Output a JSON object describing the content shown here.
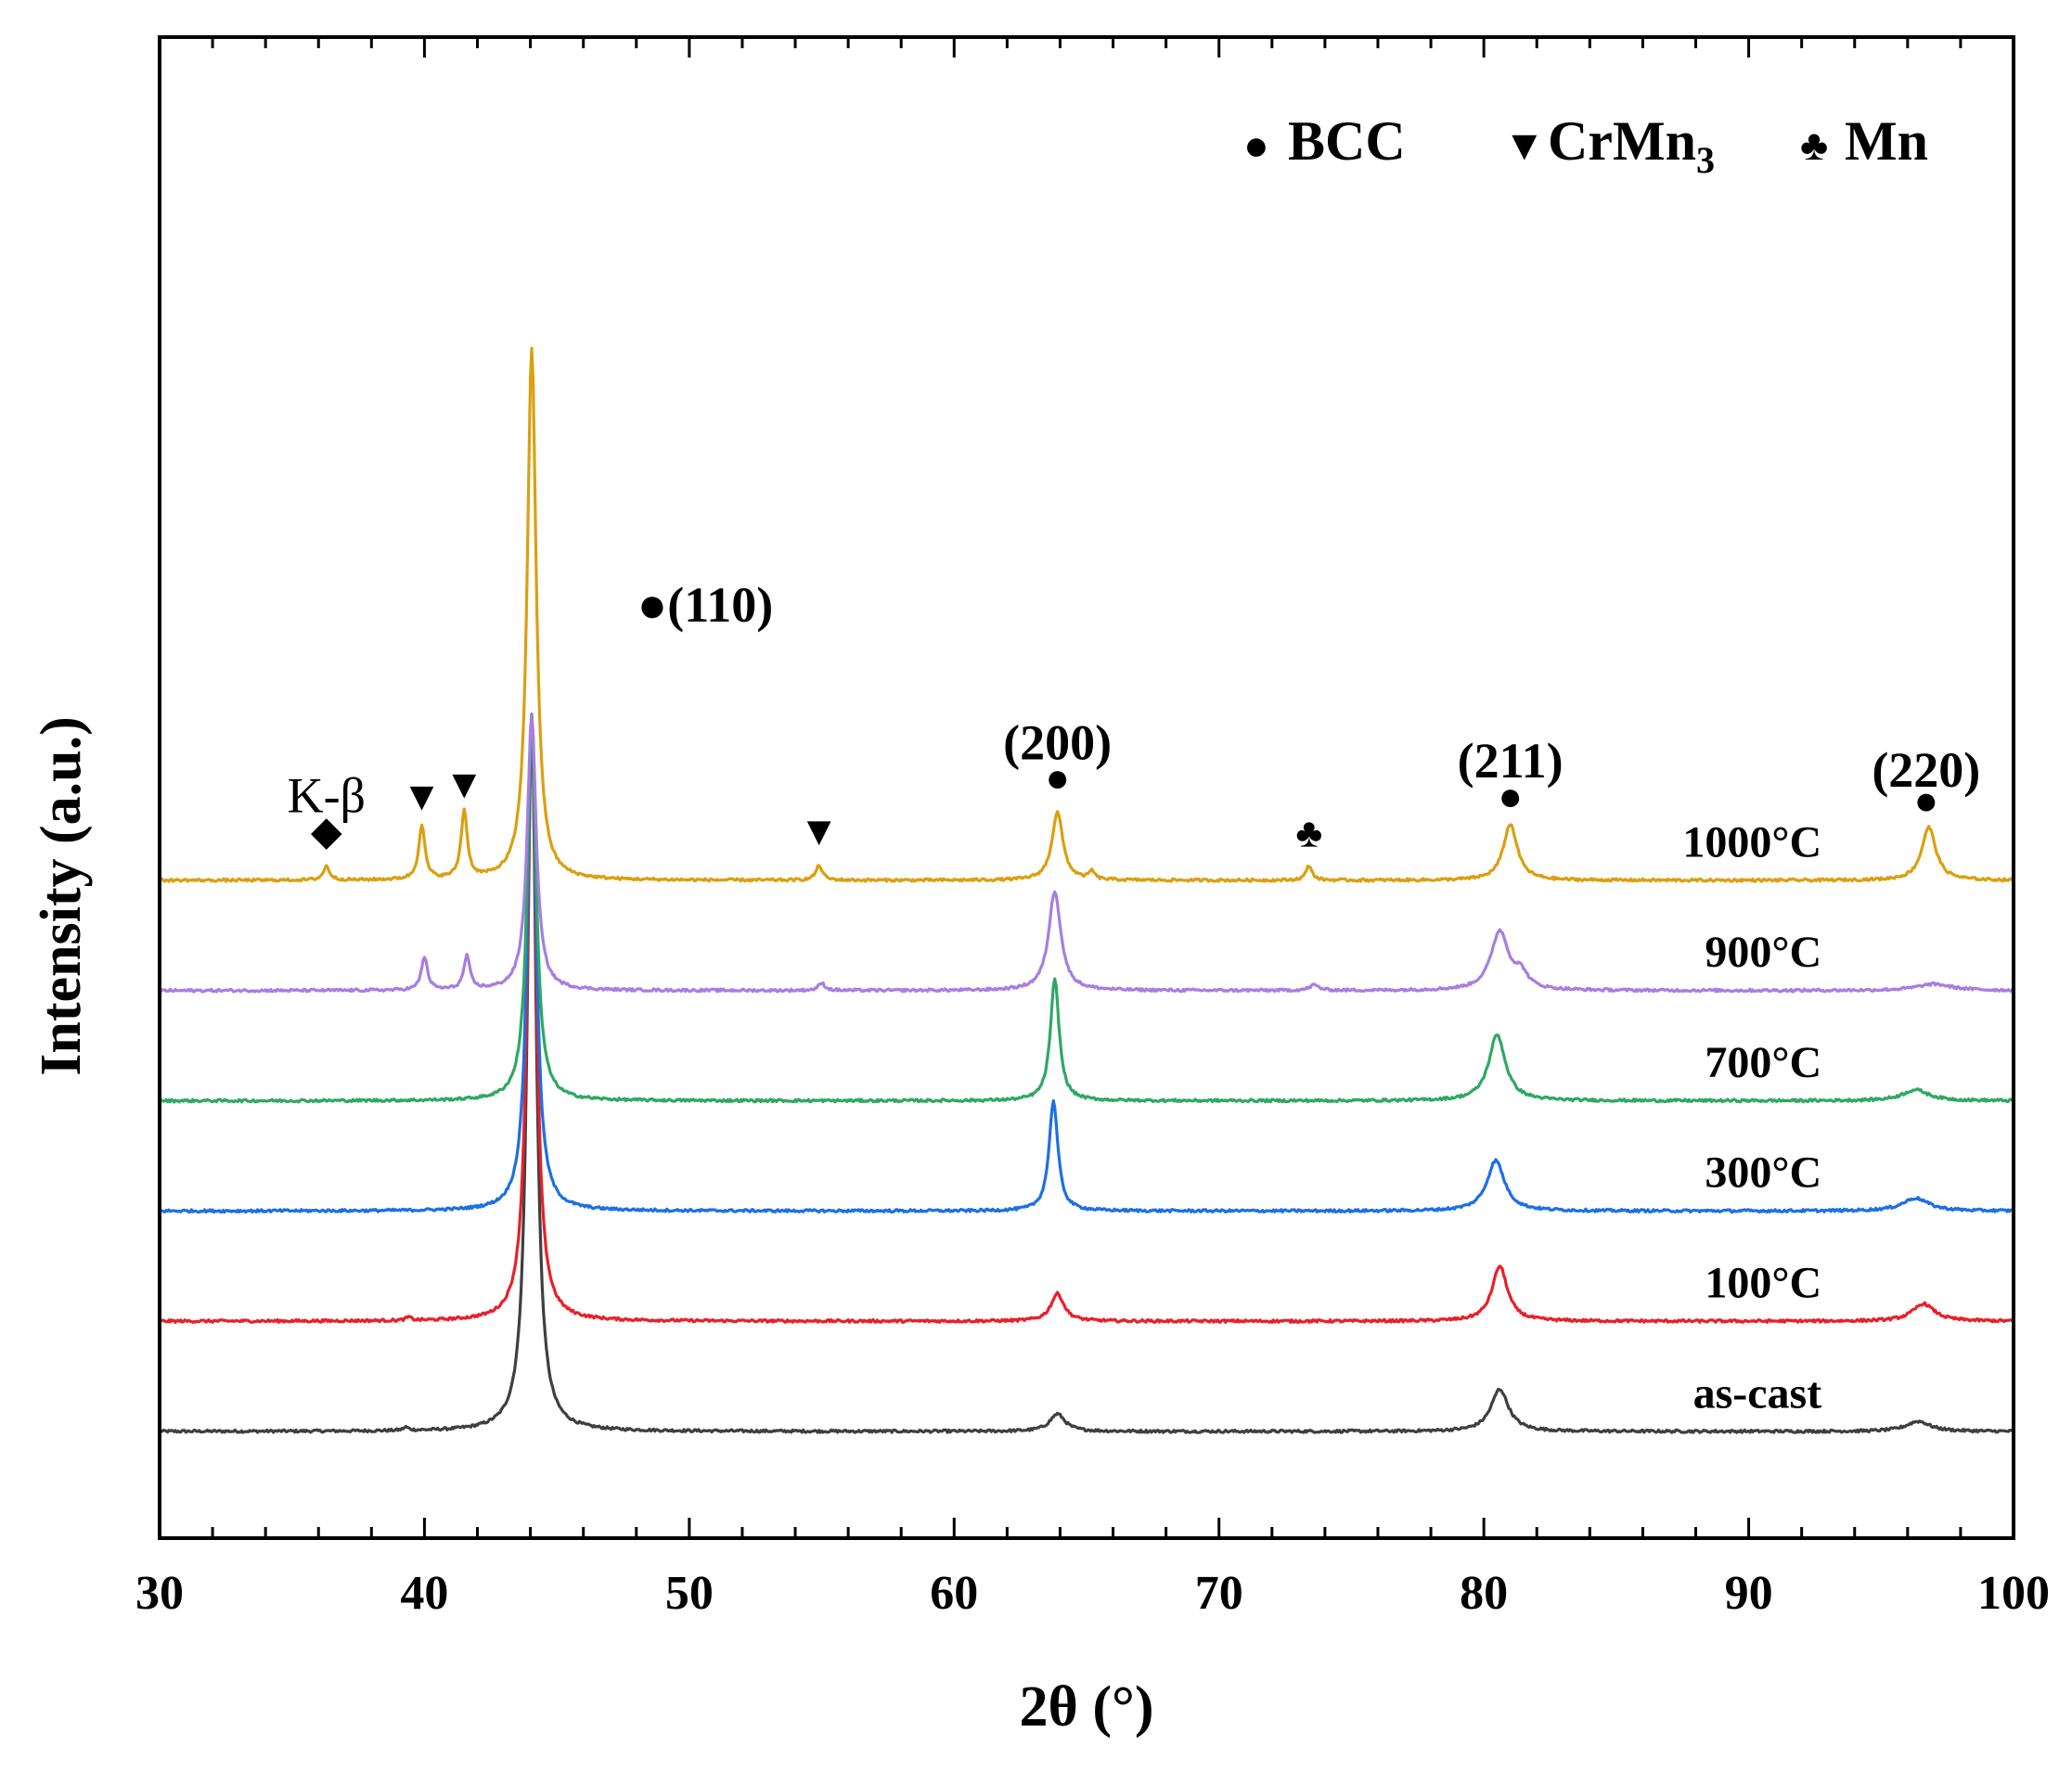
{
  "chart_data": {
    "type": "line",
    "title": "",
    "xlabel": "2θ (°)",
    "ylabel": "Intensity (a.u.)",
    "xlim": [
      30,
      100
    ],
    "xticks": [
      "30",
      "40",
      "50",
      "60",
      "70",
      "80",
      "90",
      "100"
    ],
    "x_minor_step": 2,
    "yticks": [],
    "series": [
      {
        "name": "as-cast",
        "label": "as-cast",
        "color": "#3f3f3f",
        "baseline": 0,
        "peaks": [
          [
            39.3,
            0.35,
            0.12
          ],
          [
            44.05,
            78,
            0.2
          ],
          [
            63.9,
            1.9,
            0.35
          ],
          [
            80.6,
            4.6,
            0.4
          ],
          [
            96.4,
            1.1,
            0.55
          ]
        ]
      },
      {
        "name": "100°C",
        "label": "100°C",
        "color": "#e8202a",
        "baseline": 12,
        "peaks": [
          [
            39.4,
            0.35,
            0.12
          ],
          [
            44.05,
            66,
            0.2
          ],
          [
            63.9,
            3.0,
            0.3
          ],
          [
            80.6,
            6.0,
            0.35
          ],
          [
            96.6,
            1.9,
            0.5
          ]
        ]
      },
      {
        "name": "300°C",
        "label": "300°C",
        "color": "#1e6fe3",
        "baseline": 24,
        "peaks": [
          [
            44.05,
            54,
            0.2
          ],
          [
            63.75,
            12.0,
            0.2
          ],
          [
            80.45,
            5.5,
            0.4
          ],
          [
            96.3,
            1.4,
            0.6
          ]
        ]
      },
      {
        "name": "700°C",
        "label": "700°C",
        "color": "#2fa862",
        "baseline": 36,
        "peaks": [
          [
            44.05,
            42,
            0.2
          ],
          [
            63.8,
            13.2,
            0.2
          ],
          [
            80.5,
            7.2,
            0.38
          ],
          [
            96.3,
            1.2,
            0.6
          ]
        ]
      },
      {
        "name": "900°C",
        "label": "900°C",
        "color": "#a77ee0",
        "baseline": 48,
        "peaks": [
          [
            40.0,
            3.6,
            0.14
          ],
          [
            41.6,
            3.6,
            0.14
          ],
          [
            44.05,
            30,
            0.2
          ],
          [
            55.0,
            0.8,
            0.15
          ],
          [
            63.8,
            10.8,
            0.28
          ],
          [
            73.6,
            0.6,
            0.2
          ],
          [
            80.6,
            6.4,
            0.4
          ],
          [
            81.4,
            1.6,
            0.3
          ],
          [
            97.0,
            0.7,
            0.8
          ]
        ]
      },
      {
        "name": "1000°C",
        "label": "1000°C",
        "color": "#d9a011",
        "baseline": 60,
        "peaks": [
          [
            36.3,
            1.5,
            0.14
          ],
          [
            39.9,
            5.9,
            0.14
          ],
          [
            41.5,
            7.4,
            0.14
          ],
          [
            44.05,
            58,
            0.2
          ],
          [
            54.9,
            1.6,
            0.15
          ],
          [
            63.9,
            7.4,
            0.25
          ],
          [
            65.2,
            0.9,
            0.12
          ],
          [
            73.4,
            1.6,
            0.14
          ],
          [
            81.0,
            6.1,
            0.32
          ],
          [
            96.8,
            5.8,
            0.32
          ]
        ]
      }
    ],
    "series_label_x": 86.8,
    "y_scale": 10,
    "legend": {
      "placement": "top-right",
      "entries": [
        {
          "symbol": "●",
          "label": "BCC",
          "sub": ""
        },
        {
          "symbol": "▼",
          "label": "CrMn",
          "sub": "3"
        },
        {
          "symbol": "♣",
          "label": "Mn",
          "sub": ""
        }
      ]
    },
    "annotations": [
      {
        "id": "hkl-110",
        "text": "●(110)",
        "x": 50.6,
        "y": 88.2
      },
      {
        "id": "hkl-200",
        "text": "(200)",
        "x": 63.9,
        "y": 73.2
      },
      {
        "id": "bcc-200",
        "text": "●",
        "x": 63.9,
        "y": 69.7
      },
      {
        "id": "hkl-211",
        "text": "(211)",
        "x": 81.0,
        "y": 71.2
      },
      {
        "id": "bcc-211",
        "text": "●",
        "x": 81.0,
        "y": 67.7
      },
      {
        "id": "hkl-220",
        "text": "(220)",
        "x": 96.7,
        "y": 70.2
      },
      {
        "id": "bcc-220",
        "text": "●",
        "x": 96.7,
        "y": 67.2
      },
      {
        "id": "kbeta-label",
        "text": "K-β",
        "x": 36.3,
        "y": 67.4
      },
      {
        "id": "kbeta-diamond",
        "text": "◆",
        "x": 36.3,
        "y": 63.9
      },
      {
        "id": "crmn3-1",
        "text": "▼",
        "x": 39.9,
        "y": 67.7
      },
      {
        "id": "crmn3-2",
        "text": "▼",
        "x": 41.5,
        "y": 69.0
      },
      {
        "id": "crmn3-3",
        "text": "▼",
        "x": 54.9,
        "y": 63.9
      },
      {
        "id": "mn-1",
        "text": "♣",
        "x": 73.4,
        "y": 63.7
      }
    ]
  }
}
